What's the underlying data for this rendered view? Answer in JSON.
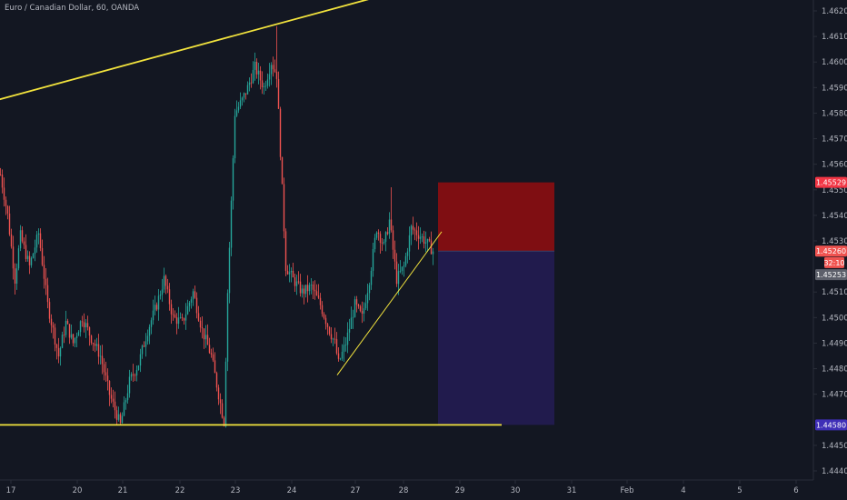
{
  "header": {
    "symbol_title": "Euro / Canadian Dollar, 60, OANDA"
  },
  "colors": {
    "background": "#131722",
    "axis_line": "#2a2e39",
    "axis_text": "#b2b5be",
    "up": "#26a69a",
    "down": "#ef5350",
    "trendline": "#f2e33d",
    "stop_zone": "#7f0e12",
    "target_zone": "#211b4d",
    "tag_stop": "#f23645",
    "tag_target": "#3f2fb7",
    "tag_last": "#ef5350",
    "tag_prev": "#5d606b"
  },
  "chart_data": {
    "type": "candlestick",
    "title": "Euro / Canadian Dollar, 60, OANDA",
    "ylim": [
      1.4435,
      1.4626
    ],
    "y_ticks": [
      "1.46200",
      "1.46100",
      "1.46000",
      "1.45900",
      "1.45800",
      "1.45700",
      "1.45600",
      "1.45500",
      "1.45400",
      "1.45300",
      "1.45100",
      "1.45000",
      "1.44900",
      "1.44800",
      "1.44700",
      "1.44500",
      "1.44400"
    ],
    "x_ticks": [
      "17",
      "20",
      "21",
      "22",
      "23",
      "24",
      "27",
      "28",
      "29",
      "30",
      "31",
      "Feb",
      "4",
      "5",
      "6"
    ],
    "price_tags": [
      {
        "label": "1.45529",
        "value": 1.45529,
        "role": "stop"
      },
      {
        "label": "1.45260",
        "value": 1.4526,
        "role": "last"
      },
      {
        "label": "32:10",
        "value": 1.45215,
        "role": "countdown"
      },
      {
        "label": "1.45253",
        "value": 1.45168,
        "role": "prev"
      },
      {
        "label": "1.44580",
        "value": 1.4458,
        "role": "target"
      }
    ],
    "position": {
      "type": "short",
      "stop": 1.45529,
      "entry": 1.4526,
      "target": 1.4458,
      "x_start": "28",
      "x_end": "30"
    },
    "trendlines": [
      {
        "from": {
          "x": "16",
          "y": 1.4584
        },
        "to": {
          "x": "23.5",
          "y": 1.4625
        },
        "width": "thick"
      },
      {
        "from": {
          "x": "16",
          "y": 1.4458
        },
        "to": {
          "x": "29.2",
          "y": 1.4458
        },
        "width": "thick"
      },
      {
        "from": {
          "x": "26.7",
          "y": 1.44775
        },
        "to": {
          "x": "28.4",
          "y": 1.45336
        },
        "width": "thin"
      }
    ],
    "path_points": [
      [
        1.4556,
        0
      ],
      [
        1.454,
        8
      ],
      [
        1.4515,
        16
      ],
      [
        1.4532,
        22
      ],
      [
        1.452,
        32
      ],
      [
        1.4533,
        42
      ],
      [
        1.4505,
        52
      ],
      [
        1.4495,
        58
      ],
      [
        1.4485,
        64
      ],
      [
        1.4498,
        72
      ],
      [
        1.449,
        80
      ],
      [
        1.45,
        90
      ],
      [
        1.4492,
        100
      ],
      [
        1.4485,
        110
      ],
      [
        1.447,
        120
      ],
      [
        1.4458,
        132
      ],
      [
        1.4475,
        142
      ],
      [
        1.4482,
        152
      ],
      [
        1.4495,
        162
      ],
      [
        1.4505,
        172
      ],
      [
        1.4515,
        180
      ],
      [
        1.45,
        190
      ],
      [
        1.4498,
        200
      ],
      [
        1.451,
        212
      ],
      [
        1.4495,
        222
      ],
      [
        1.4485,
        232
      ],
      [
        1.447,
        240
      ],
      [
        1.4459,
        246
      ],
      [
        1.451,
        250
      ],
      [
        1.458,
        258
      ],
      [
        1.4585,
        266
      ],
      [
        1.459,
        272
      ],
      [
        1.4598,
        280
      ],
      [
        1.459,
        290
      ],
      [
        1.46,
        298
      ],
      [
        1.4595,
        304
      ],
      [
        1.455,
        310
      ],
      [
        1.452,
        314
      ],
      [
        1.4515,
        322
      ],
      [
        1.451,
        332
      ],
      [
        1.4512,
        342
      ],
      [
        1.4505,
        352
      ],
      [
        1.4495,
        362
      ],
      [
        1.449,
        368
      ],
      [
        1.4482,
        372
      ],
      [
        1.449,
        380
      ],
      [
        1.4505,
        390
      ],
      [
        1.45,
        398
      ],
      [
        1.4515,
        406
      ],
      [
        1.4535,
        414
      ],
      [
        1.4528,
        422
      ],
      [
        1.4538,
        428
      ],
      [
        1.4515,
        436
      ],
      [
        1.452,
        444
      ],
      [
        1.4535,
        452
      ],
      [
        1.4532,
        462
      ],
      [
        1.4528,
        472
      ],
      [
        1.4526,
        476
      ]
    ]
  }
}
